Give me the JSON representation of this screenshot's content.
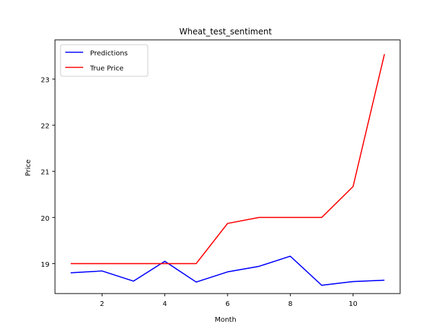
{
  "chart_data": {
    "type": "line",
    "title": "Wheat_test_sentiment",
    "xlabel": "Month",
    "ylabel": "Price",
    "xlim": [
      0.5,
      11.5
    ],
    "ylim": [
      18.35,
      23.85
    ],
    "xticks": [
      2,
      4,
      6,
      8,
      10
    ],
    "yticks": [
      19,
      20,
      21,
      22,
      23
    ],
    "grid": false,
    "legend_position": "top-left",
    "x": [
      1,
      2,
      3,
      4,
      5,
      6,
      7,
      8,
      9,
      10,
      11
    ],
    "series": [
      {
        "name": "Predictions",
        "color": "#0000ff",
        "values": [
          18.8,
          18.84,
          18.62,
          19.05,
          18.6,
          18.82,
          18.94,
          19.16,
          18.53,
          18.61,
          18.64
        ]
      },
      {
        "name": "True Price",
        "color": "#ff0000",
        "values": [
          19.0,
          19.0,
          19.0,
          19.0,
          19.0,
          19.87,
          20.0,
          20.0,
          20.0,
          20.67,
          23.54
        ]
      }
    ]
  }
}
